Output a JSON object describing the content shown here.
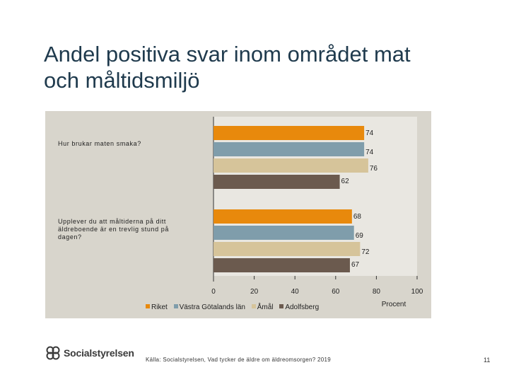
{
  "slide": {
    "title_lines": [
      "Andel positiva svar inom området mat",
      "och måltidsmiljö"
    ],
    "source": "Källa: Socialstyrelsen, Vad tycker de äldre om äldreomsorgen? 2019",
    "page_number": "11",
    "logo_text": "Socialstyrelsen"
  },
  "chart_data": {
    "type": "bar",
    "orientation": "horizontal",
    "categories": [
      "Hur brukar maten smaka?",
      "Upplever du att måltiderna på ditt äldreboende är en trevlig stund på dagen?"
    ],
    "series": [
      {
        "name": "Riket",
        "color": "#e8890c",
        "values": [
          74,
          68
        ]
      },
      {
        "name": "Västra Götalands län",
        "color": "#7f9dab",
        "values": [
          74,
          69
        ]
      },
      {
        "name": "Åmål",
        "color": "#d6c49a",
        "values": [
          76,
          72
        ]
      },
      {
        "name": "Adolfsberg",
        "color": "#6b5a4e",
        "values": [
          62,
          67
        ]
      }
    ],
    "xlim": [
      0,
      100
    ],
    "xticks": [
      "0",
      "20",
      "40",
      "60",
      "80",
      "100"
    ],
    "xlabel": "Procent",
    "legend_position": "bottom"
  }
}
